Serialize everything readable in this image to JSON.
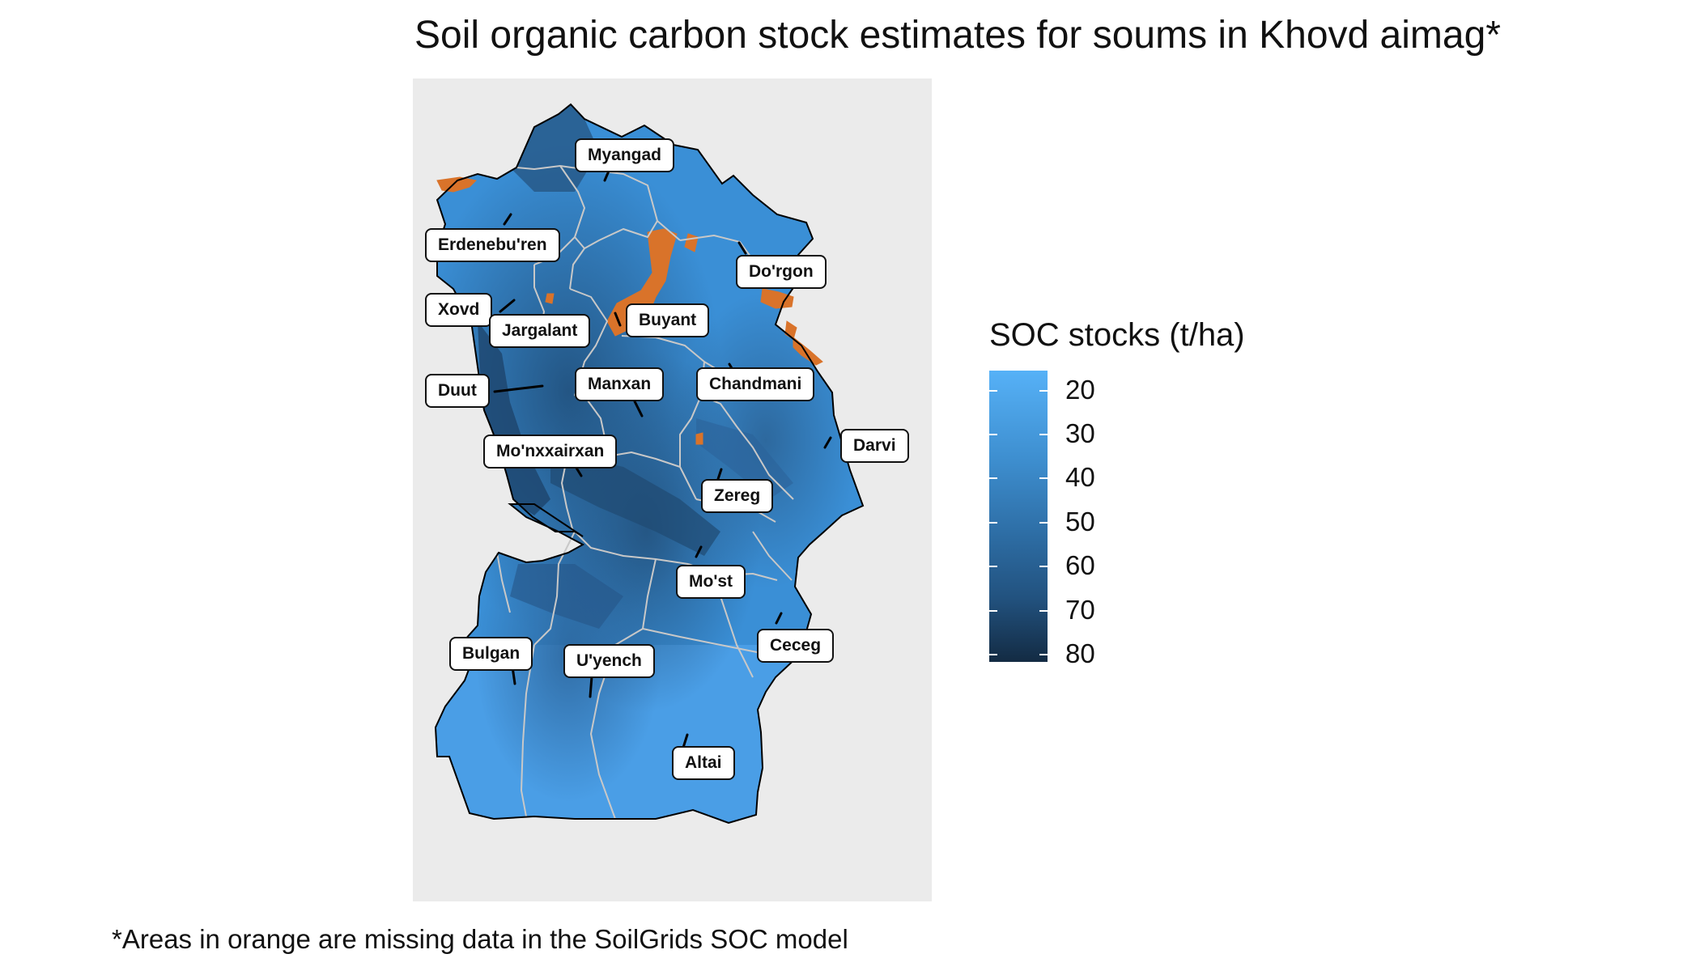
{
  "title": "Soil organic carbon stock estimates for soums in Khovd aimag*",
  "caption": "*Areas in orange are missing data in the SoilGrids SOC model",
  "legend": {
    "title": "SOC stocks (t/ha)",
    "values": [
      "20",
      "30",
      "40",
      "50",
      "60",
      "70",
      "80"
    ],
    "color_low": "#56b1f7",
    "color_high": "#132b43"
  },
  "colors": {
    "panel_background": "#ebebeb",
    "missing_data": "#d9732a",
    "boundary": "#c8c8c8",
    "outline": "#000000"
  },
  "soums": [
    {
      "name": "Myangad"
    },
    {
      "name": "Erdenebu'ren"
    },
    {
      "name": "Do'rgon"
    },
    {
      "name": "Xovd"
    },
    {
      "name": "Jargalant"
    },
    {
      "name": "Buyant"
    },
    {
      "name": "Duut"
    },
    {
      "name": "Manxan"
    },
    {
      "name": "Chandmani"
    },
    {
      "name": "Darvi"
    },
    {
      "name": "Mo'nxxairxan"
    },
    {
      "name": "Zereg"
    },
    {
      "name": "Mo'st"
    },
    {
      "name": "Ceceg"
    },
    {
      "name": "Bulgan"
    },
    {
      "name": "U'yench"
    },
    {
      "name": "Altai"
    }
  ]
}
